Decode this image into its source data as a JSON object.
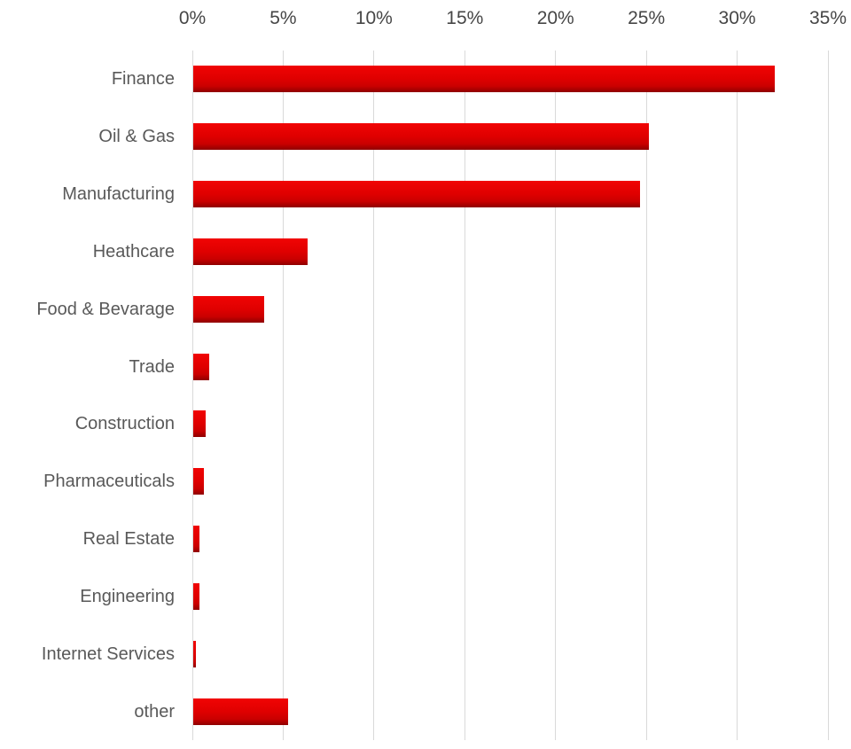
{
  "chart_data": {
    "type": "bar",
    "orientation": "horizontal",
    "title": "",
    "xlabel": "",
    "ylabel": "",
    "categories": [
      "Finance",
      "Oil & Gas",
      "Manufacturing",
      "Heathcare",
      "Food & Bevarage",
      "Trade",
      "Construction",
      "Pharmaceuticals",
      "Real Estate",
      "Engineering",
      "Internet Services",
      "other"
    ],
    "values": [
      32,
      25.1,
      24.6,
      6.3,
      3.9,
      0.9,
      0.7,
      0.6,
      0.35,
      0.35,
      0.15,
      5.2
    ],
    "value_unit": "%",
    "xlim": [
      0,
      35
    ],
    "x_tick_values": [
      0,
      5,
      10,
      15,
      20,
      25,
      30,
      35
    ],
    "x_tick_labels": [
      "0%",
      "5%",
      "10%",
      "15%",
      "20%",
      "25%",
      "30%",
      "35%"
    ],
    "grid": true,
    "legend": false,
    "colors": {
      "bar_red": "#e00000",
      "bar_gradient_top": "#f10404",
      "bar_gradient_mid": "#df0000",
      "bar_gradient_bottom": "#8f0000",
      "gridline": "#d9d9d9",
      "tick_label_text": "#464646",
      "category_label_text": "#595959",
      "background": "#ffffff"
    }
  }
}
